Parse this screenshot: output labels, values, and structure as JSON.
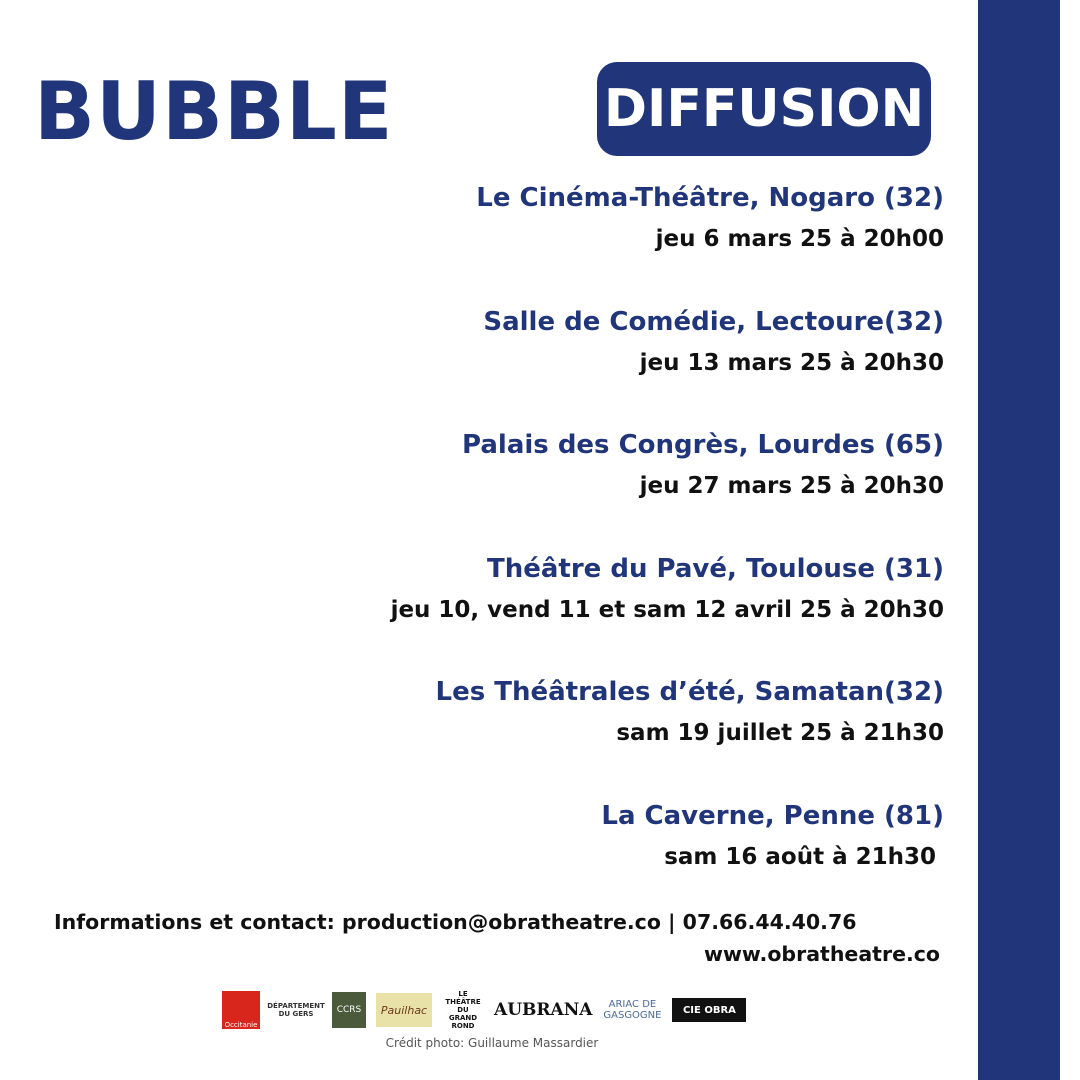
{
  "title": "BUBBLE",
  "badge": "DIFFUSION",
  "events": [
    {
      "venue": "Le Cinéma-Théâtre, Nogaro (32)",
      "date": "jeu 6 mars 25 à 20h00"
    },
    {
      "venue": "Salle de Comédie, Lectoure(32)",
      "date": "jeu 13 mars 25 à 20h30"
    },
    {
      "venue": "Palais des Congrès, Lourdes (65)",
      "date": "jeu 27 mars 25 à 20h30"
    },
    {
      "venue": "Théâtre du Pavé, Toulouse (31)",
      "date": "jeu 10, vend 11 et sam 12 avril 25 à 20h30"
    },
    {
      "venue": "Les Théâtrales d’été, Samatan(32)",
      "date": "sam 19 juillet 25 à 21h30"
    },
    {
      "venue": "La Caverne, Penne (81)",
      "date": "sam 16 août à 21h30"
    }
  ],
  "contact": {
    "line": "Informations et contact: production@obratheatre.co | 07.66.44.40.76",
    "website": "www.obratheatre.co"
  },
  "logos": [
    "Occitanie",
    "DÉPARTEMENT DU GERS",
    "CCRS",
    "Pauilhac",
    "LE THÉÂTRE DU GRAND ROND",
    "AUBRANA",
    "ARIAC DE GASGOGNE",
    "CIE OBRA"
  ],
  "credit": "Crédit photo: Guillaume Massardier",
  "colors": {
    "brand": "#21357a",
    "text": "#111111"
  }
}
